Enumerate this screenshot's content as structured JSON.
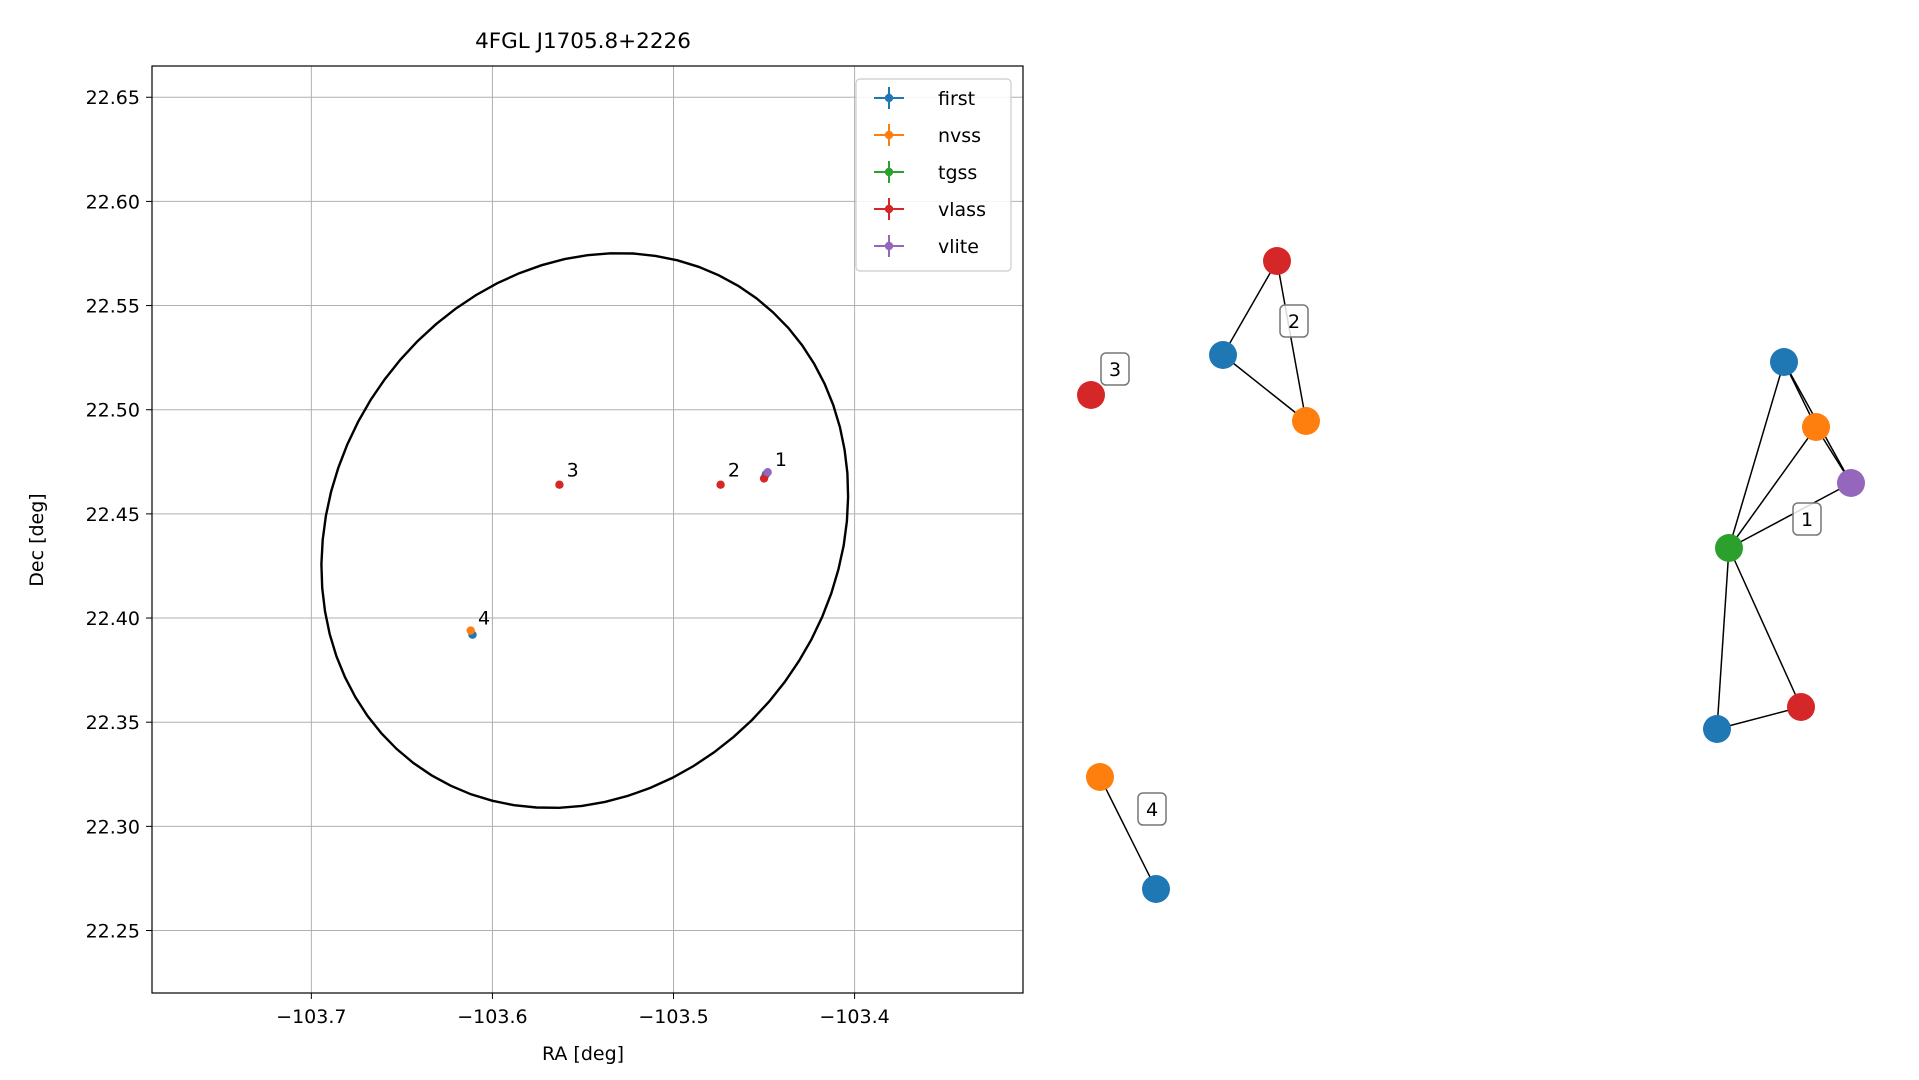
{
  "colors": {
    "first": "#1f77b4",
    "nvss": "#ff7f0e",
    "tgss": "#2ca02c",
    "vlass": "#d62728",
    "vlite": "#9467bd",
    "grid": "#b0b0b0",
    "frame": "#000000"
  },
  "chart_data": [
    {
      "type": "scatter",
      "title": "4FGL J1705.8+2226",
      "xlabel": "RA [deg]",
      "ylabel": "Dec [deg]",
      "xlim": [
        -103.788,
        -103.307
      ],
      "ylim": [
        22.22,
        22.665
      ],
      "grid": true,
      "legend_position": "top-right",
      "x_ticks": [
        {
          "value": -103.7,
          "label": "−103.7"
        },
        {
          "value": -103.6,
          "label": "−103.6"
        },
        {
          "value": -103.5,
          "label": "−103.5"
        },
        {
          "value": -103.4,
          "label": "−103.4"
        }
      ],
      "y_ticks": [
        {
          "value": 22.25,
          "label": "22.25"
        },
        {
          "value": 22.3,
          "label": "22.30"
        },
        {
          "value": 22.35,
          "label": "22.35"
        },
        {
          "value": 22.4,
          "label": "22.40"
        },
        {
          "value": 22.45,
          "label": "22.45"
        },
        {
          "value": 22.5,
          "label": "22.50"
        },
        {
          "value": 22.55,
          "label": "22.55"
        },
        {
          "value": 22.6,
          "label": "22.60"
        },
        {
          "value": 22.65,
          "label": "22.65"
        }
      ],
      "series": [
        {
          "name": "first",
          "color_key": "first",
          "points": [
            [
              -103.449,
              22.469
            ],
            [
              -103.611,
              22.392
            ]
          ]
        },
        {
          "name": "nvss",
          "color_key": "nvss",
          "points": [
            [
              -103.612,
              22.394
            ]
          ]
        },
        {
          "name": "tgss",
          "color_key": "tgss",
          "points": []
        },
        {
          "name": "vlass",
          "color_key": "vlass",
          "points": [
            [
              -103.45,
              22.467
            ],
            [
              -103.474,
              22.464
            ],
            [
              -103.563,
              22.464
            ]
          ]
        },
        {
          "name": "vlite",
          "color_key": "vlite",
          "points": [
            [
              -103.448,
              22.47
            ]
          ]
        }
      ],
      "annotations": [
        {
          "text": "1",
          "x": -103.444,
          "y": 22.473
        },
        {
          "text": "2",
          "x": -103.47,
          "y": 22.468
        },
        {
          "text": "3",
          "x": -103.559,
          "y": 22.468
        },
        {
          "text": "4",
          "x": -103.608,
          "y": 22.397
        }
      ],
      "error_ellipse": {
        "center": [
          -103.549,
          22.442
        ],
        "semi_major_deg": 0.15,
        "semi_minor_deg": 0.128,
        "rotation_deg": 28
      }
    },
    {
      "type": "network",
      "groups": [
        {
          "label": "1",
          "nodes": [
            {
              "id": "1a",
              "color_key": "first"
            },
            {
              "id": "1b",
              "color_key": "nvss"
            },
            {
              "id": "1c",
              "color_key": "vlite"
            },
            {
              "id": "1d",
              "color_key": "tgss"
            },
            {
              "id": "1e",
              "color_key": "vlass"
            },
            {
              "id": "1f",
              "color_key": "first"
            }
          ],
          "edges": [
            [
              "1a",
              "1b"
            ],
            [
              "1b",
              "1c"
            ],
            [
              "1a",
              "1c"
            ],
            [
              "1a",
              "1d"
            ],
            [
              "1b",
              "1d"
            ],
            [
              "1c",
              "1d"
            ],
            [
              "1d",
              "1e"
            ],
            [
              "1d",
              "1f"
            ],
            [
              "1e",
              "1f"
            ]
          ]
        },
        {
          "label": "2",
          "nodes": [
            {
              "id": "2a",
              "color_key": "vlass"
            },
            {
              "id": "2b",
              "color_key": "first"
            },
            {
              "id": "2c",
              "color_key": "nvss"
            }
          ],
          "edges": [
            [
              "2a",
              "2b"
            ],
            [
              "2a",
              "2c"
            ],
            [
              "2b",
              "2c"
            ]
          ]
        },
        {
          "label": "3",
          "nodes": [
            {
              "id": "3a",
              "color_key": "vlass"
            }
          ],
          "edges": []
        },
        {
          "label": "4",
          "nodes": [
            {
              "id": "4a",
              "color_key": "nvss"
            },
            {
              "id": "4b",
              "color_key": "first"
            }
          ],
          "edges": [
            [
              "4a",
              "4b"
            ]
          ]
        }
      ]
    }
  ]
}
